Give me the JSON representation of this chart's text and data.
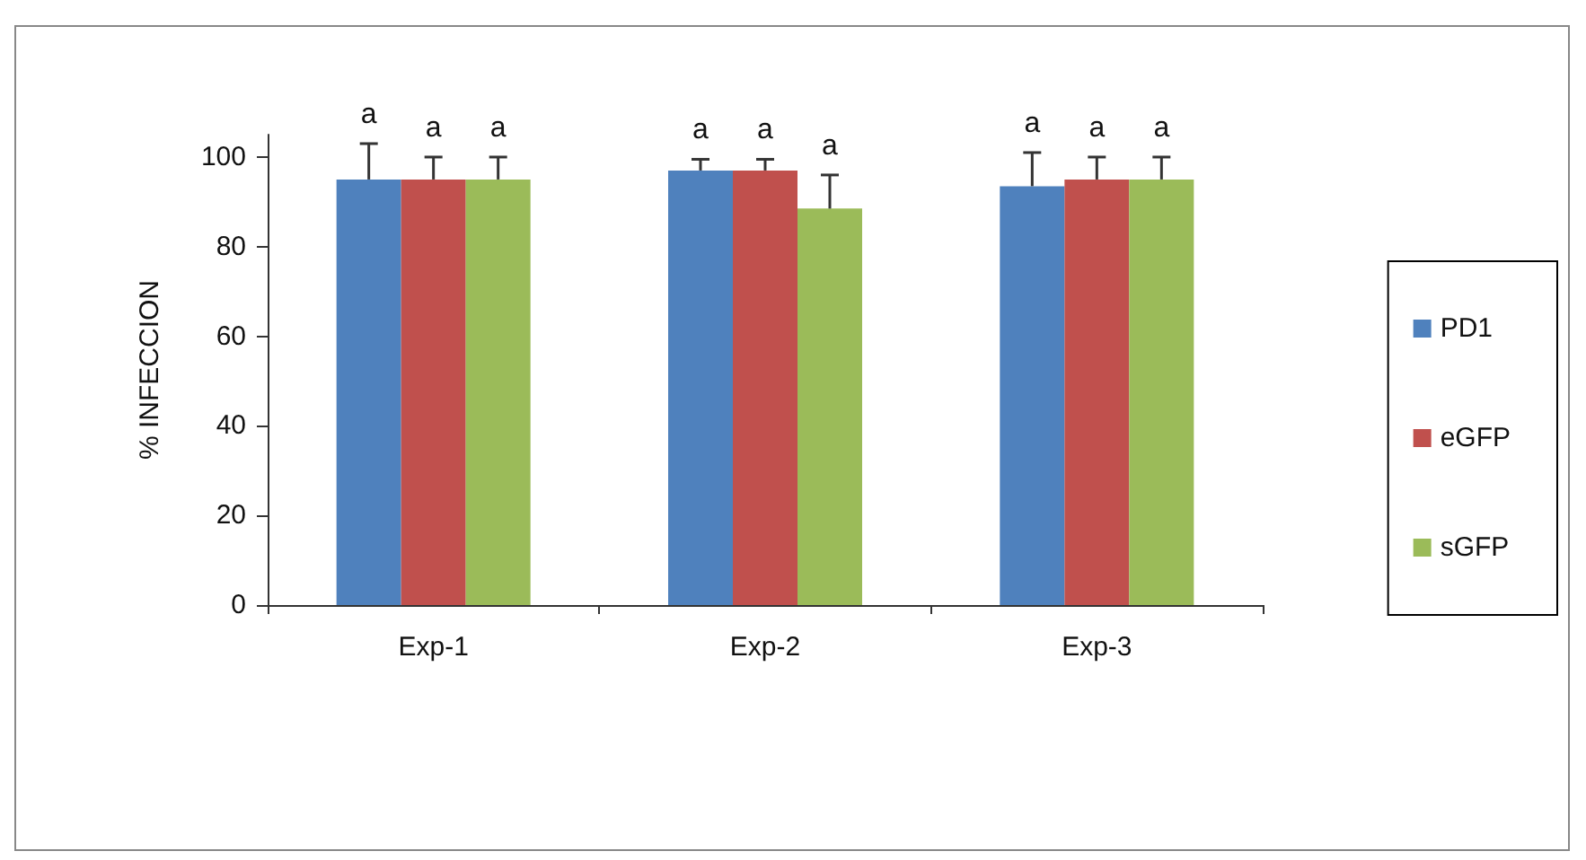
{
  "chart_data": {
    "type": "bar",
    "ylabel": "% INFECCION",
    "categories": [
      "Exp-1",
      "Exp-2",
      "Exp-3"
    ],
    "series": [
      {
        "name": "PD1",
        "color": "#4f81bd",
        "values": [
          95,
          97,
          93.5
        ],
        "errors": [
          [
            95,
            103
          ],
          [
            97,
            99.5
          ],
          [
            93.5,
            101
          ]
        ],
        "value_labels": [
          "a",
          "a",
          "a"
        ]
      },
      {
        "name": "eGFP",
        "color": "#c0504d",
        "values": [
          95,
          97,
          95
        ],
        "errors": [
          [
            95,
            100
          ],
          [
            97,
            99.5
          ],
          [
            95,
            100
          ]
        ],
        "value_labels": [
          "a",
          "a",
          "a"
        ]
      },
      {
        "name": "sGFP",
        "color": "#9bbb59",
        "values": [
          95,
          88.5,
          95
        ],
        "errors": [
          [
            95,
            100
          ],
          [
            88.5,
            96
          ],
          [
            95,
            100
          ]
        ],
        "value_labels": [
          "a",
          "a",
          "a"
        ]
      }
    ],
    "ylim": [
      0,
      105
    ],
    "yticks": [
      0,
      20,
      40,
      60,
      80,
      100
    ],
    "grid": false,
    "legend": "right"
  }
}
